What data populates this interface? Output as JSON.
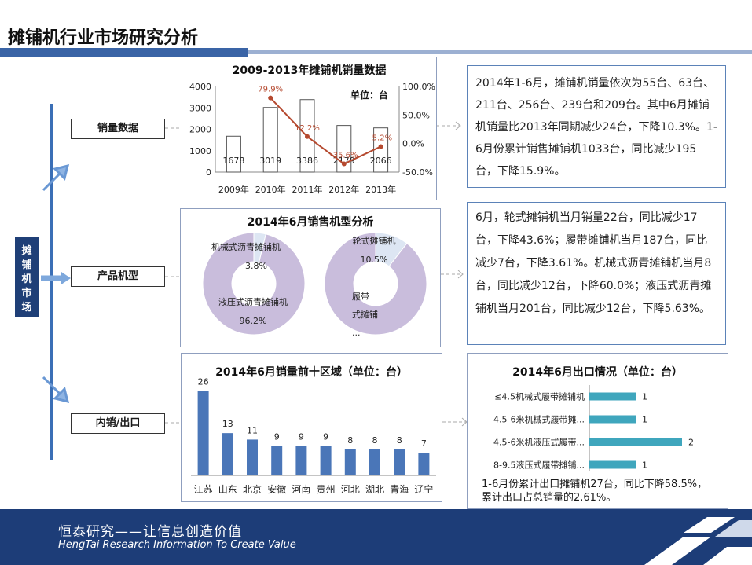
{
  "page": {
    "title": "摊铺机行业市场研究分析"
  },
  "sidebar": {
    "market_label": [
      "摊",
      "铺",
      "机",
      "市",
      "场"
    ]
  },
  "labels": {
    "sales": "销量数据",
    "product": "产品机型",
    "domestic": "内销/出口"
  },
  "notes": {
    "sales": "2014年1-6月，摊铺机销量依次为55台、63台、211台、256台、239台和209台。其中6月摊铺机销量比2013年同期减少24台，下降10.3%。1-6月份累计销售摊铺机1033台，同比减少195台，下降15.9%。",
    "product": "6月，轮式摊铺机当月销量22台，同比减少17台，下降43.6%；履带摊铺机当月187台，同比减少7台，下降3.61%。机械式沥青摊铺机当月8台，同比减少12台，下降60.0%；液压式沥青摊铺机当月201台，同比减少12台，下降5.63%。",
    "export": "1-6月份累计出口摊铺机27台，同比下降58.5%，累计出口占总销量的2.61%。"
  },
  "footer": {
    "slogan": "恒泰研究——让信息创造价值",
    "english": "HengTai Research Information To Create Value"
  },
  "colors": {
    "accent": "#3a64a6",
    "bar": "#4a76b8",
    "line": "#b5492f",
    "export_bar": "#3fa6bd",
    "donut": "#c9bddc",
    "donut_small": "#dde6f3",
    "dark": "#1d3d78"
  },
  "chart_data": [
    {
      "type": "bar",
      "title": "2009-2013年摊铺机销量数据",
      "unit_label": "单位：台",
      "categories": [
        "2009年",
        "2010年",
        "2011年",
        "2012年",
        "2013年"
      ],
      "series": [
        {
          "values": [
            1678,
            3019,
            3386,
            2179,
            2066
          ],
          "kind": "bar"
        },
        {
          "values": [
            null,
            79.9,
            12.2,
            -35.6,
            -5.2
          ],
          "kind": "line",
          "value_labels": [
            "",
            "79.9%",
            "12.2%",
            "-35.6%",
            "-5.2%"
          ]
        }
      ],
      "ylim": [
        0,
        4000
      ],
      "yticks": [
        "0",
        "1000",
        "2000",
        "3000",
        "4000"
      ],
      "y2lim": [
        -50,
        100
      ],
      "y2ticks": [
        "-50.0%",
        "0.0%",
        "50.0%",
        "100.0%"
      ]
    },
    {
      "type": "pie",
      "title": "2014年6月销售机型分析",
      "charts": [
        {
          "slices": [
            {
              "label": "机械式沥青摊铺机",
              "value": 3.8,
              "value_label": "3.8%"
            },
            {
              "label": "液压式沥青摊铺机",
              "value": 96.2,
              "value_label": "96.2%"
            }
          ]
        },
        {
          "slices": [
            {
              "label": "轮式摊铺机",
              "value": 10.5,
              "value_label": "10.5%"
            },
            {
              "label": "履带式摊铺...",
              "value": 89.5,
              "value_label": ""
            }
          ]
        }
      ]
    },
    {
      "type": "bar",
      "title": "2014年6月销量前十区域（单位：台）",
      "categories": [
        "江苏",
        "山东",
        "北京",
        "安徽",
        "河南",
        "贵州",
        "河北",
        "湖北",
        "青海",
        "辽宁"
      ],
      "values": [
        26,
        13,
        11,
        9,
        9,
        9,
        8,
        8,
        8,
        7
      ],
      "ylim": [
        0,
        28
      ]
    },
    {
      "type": "bar",
      "orientation": "horizontal",
      "title": "2014年6月出口情况（单位：台）",
      "categories": [
        "≤4.5机械式履带摊铺机",
        "4.5-6米机械式履带摊...",
        "4.5-6米机液压式履带...",
        "8-9.5液压式履带摊铺..."
      ],
      "values": [
        1,
        1,
        2,
        1
      ],
      "xlim": [
        0,
        2
      ]
    }
  ]
}
